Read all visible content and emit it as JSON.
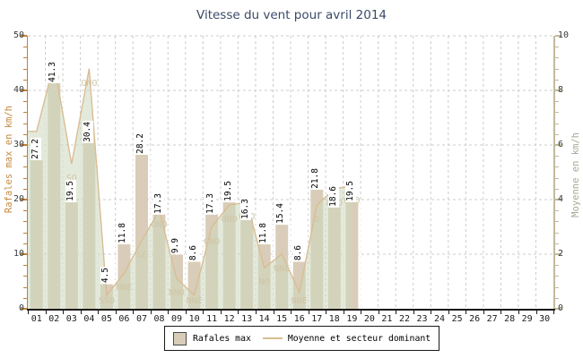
{
  "title": "Vitesse du vent pour avril 2014",
  "legend": {
    "bar_label": "Rafales max",
    "line_label": "Moyenne et secteur dominant"
  },
  "chart_data": {
    "type": "bar",
    "title": "Vitesse du vent pour avril 2014",
    "x": [
      "01",
      "02",
      "03",
      "04",
      "05",
      "06",
      "07",
      "08",
      "09",
      "10",
      "11",
      "12",
      "13",
      "14",
      "15",
      "16",
      "17",
      "18",
      "19",
      "20",
      "21",
      "22",
      "23",
      "24",
      "25",
      "26",
      "27",
      "28",
      "29",
      "30"
    ],
    "series": [
      {
        "name": "Rafales max",
        "type": "bar",
        "axis": "left",
        "unit": "km/h",
        "values": [
          27.2,
          41.3,
          19.5,
          30.4,
          4.5,
          11.8,
          28.2,
          17.3,
          9.9,
          8.6,
          17.3,
          19.5,
          16.3,
          11.8,
          15.4,
          8.6,
          21.8,
          18.6,
          19.5
        ]
      },
      {
        "name": "Moyenne et secteur dominant",
        "type": "line-area",
        "axis": "right",
        "unit": "km/h",
        "values": [
          6.5,
          9.0,
          5.3,
          8.8,
          0.5,
          1.3,
          2.5,
          3.6,
          1.1,
          0.5,
          3.0,
          3.8,
          3.9,
          1.5,
          2.0,
          0.6,
          3.8,
          4.4,
          4.5
        ],
        "directions": [
          "SO",
          "SO",
          "SO",
          "ONO",
          "SSO",
          "NNE",
          "SE",
          "ONO",
          "NNO",
          "NNE",
          "ONO",
          "ONO",
          "ONO",
          "NO",
          "NNE",
          "NNE",
          "O",
          "ONO",
          "ONO"
        ]
      }
    ],
    "left_axis": {
      "label": "Rafales max en km/h",
      "range": [
        0,
        50
      ],
      "ticks": [
        0,
        10,
        20,
        30,
        40,
        50
      ],
      "minor_step": 2
    },
    "right_axis": {
      "label": "Moyenne en km/h",
      "range": [
        0,
        10
      ],
      "ticks": [
        0,
        2,
        4,
        6,
        8,
        10
      ],
      "minor_step": 0.4
    },
    "grid": true,
    "legend_position": "bottom"
  },
  "colors": {
    "title": "#3b4a68",
    "bar": "#d9cdb9",
    "area": "rgba(205,217,190,0.55)",
    "line": "#d9bd93",
    "direction_label": "#cfc5a5",
    "grid": "#cccccc",
    "white_grid": "rgba(255,255,255,0.9)",
    "left_axis": "#c08035",
    "left_axis_label": "#c6893f",
    "right_axis": "#c3ba9b",
    "right_axis_label": "#a4ac93",
    "x_axis": "#1a1a1a"
  }
}
